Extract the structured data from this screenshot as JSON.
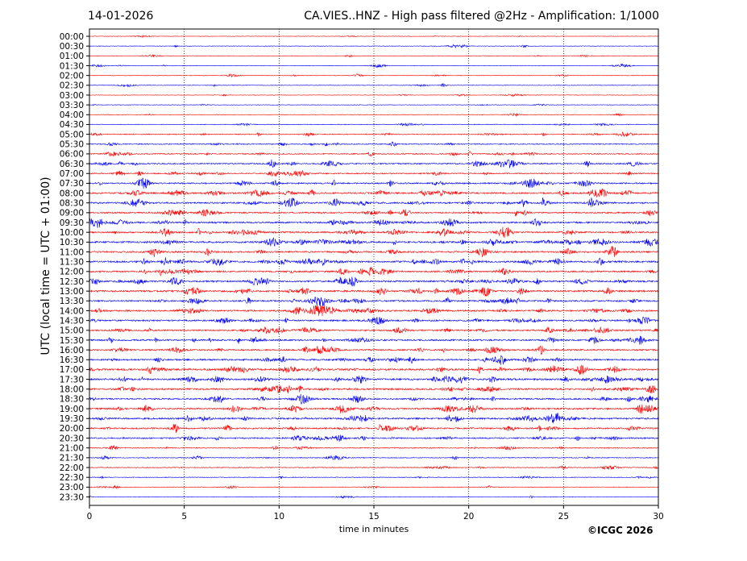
{
  "chart_data": {
    "type": "line",
    "date": "14-01-2026",
    "title": "CA.VIES..HNZ - High pass filtered @2Hz - Amplification: 1/1000",
    "xlabel": "time in minutes",
    "ylabel": "UTC (local time = UTC + 01:00)",
    "xlim": [
      0,
      30
    ],
    "xticks": [
      "0",
      "5",
      "10",
      "15",
      "20",
      "25",
      "30"
    ],
    "vertical_grid": "dotted",
    "row_labels": [
      "00:00",
      "00:30",
      "01:00",
      "01:30",
      "02:00",
      "02:30",
      "03:00",
      "03:30",
      "04:00",
      "04:30",
      "05:00",
      "05:30",
      "06:00",
      "06:30",
      "07:00",
      "07:30",
      "08:00",
      "08:30",
      "09:00",
      "09:30",
      "10:00",
      "10:30",
      "11:00",
      "11:30",
      "12:00",
      "12:30",
      "13:00",
      "13:30",
      "14:00",
      "14:30",
      "15:00",
      "15:30",
      "16:00",
      "16:30",
      "17:00",
      "17:30",
      "18:00",
      "18:30",
      "19:00",
      "19:30",
      "20:00",
      "20:30",
      "21:00",
      "21:30",
      "22:00",
      "22:30",
      "23:00",
      "23:30"
    ],
    "series_colors": [
      "#ff0000",
      "#0000ff"
    ],
    "color_pattern": "alternating hourly: HH:00 red, HH:30 blue",
    "activity": [
      0.03,
      0.05,
      0.05,
      0.07,
      0.08,
      0.06,
      0.03,
      0.04,
      0.05,
      0.12,
      0.25,
      0.28,
      0.35,
      0.45,
      0.4,
      0.5,
      0.6,
      0.6,
      0.55,
      0.65,
      0.65,
      0.7,
      0.6,
      0.7,
      0.6,
      0.65,
      0.7,
      0.6,
      0.65,
      0.6,
      0.55,
      0.6,
      0.55,
      0.6,
      0.7,
      0.7,
      0.65,
      0.55,
      0.6,
      0.65,
      0.55,
      0.45,
      0.25,
      0.2,
      0.18,
      0.12,
      0.1,
      0.06
    ]
  },
  "footer": {
    "copyright": "©ICGC 2026"
  }
}
